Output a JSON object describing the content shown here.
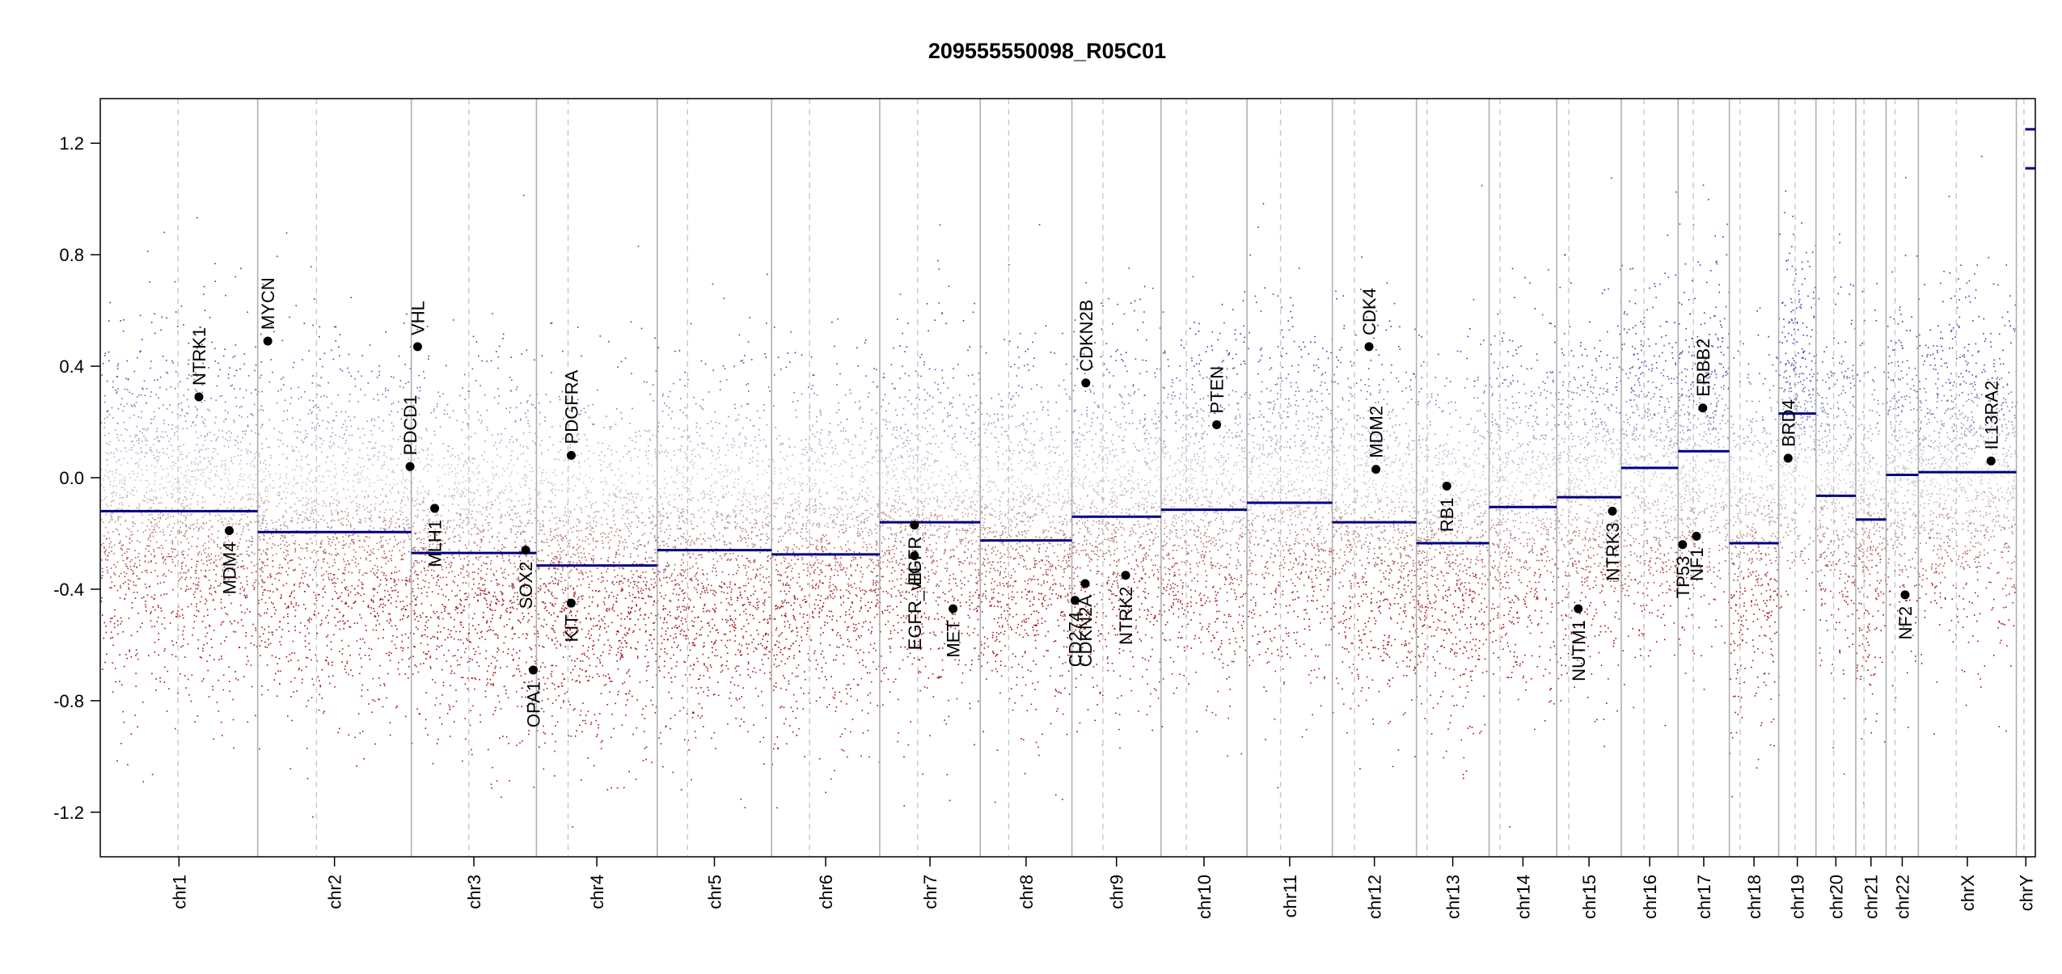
{
  "chart_data": {
    "type": "scatter",
    "title": "209555550098_R05C01",
    "xlabel": "",
    "ylabel": "",
    "ylim": [
      -1.36,
      1.36
    ],
    "y_ticks": [
      -1.2,
      -0.8,
      -0.4,
      0.0,
      0.4,
      0.8,
      1.2
    ],
    "y_tick_labels": [
      "-1.2",
      "-0.8",
      "-0.4",
      "0.0",
      "0.4",
      "0.8",
      "1.2"
    ],
    "grid": false,
    "legend": "none",
    "colors": {
      "gain": "#3a3aa8",
      "neutral": "#bbbbbb",
      "loss": "#a01010",
      "segment": "#000080",
      "boundary": "#b0b0b0",
      "centromere": "#c8c8c8",
      "gene_point": "#000000"
    },
    "chromosomes": [
      {
        "name": "chr1",
        "size": 249,
        "centromere": 123
      },
      {
        "name": "chr2",
        "size": 243,
        "centromere": 93
      },
      {
        "name": "chr3",
        "size": 198,
        "centromere": 91
      },
      {
        "name": "chr4",
        "size": 191,
        "centromere": 50
      },
      {
        "name": "chr5",
        "size": 181,
        "centromere": 48
      },
      {
        "name": "chr6",
        "size": 171,
        "centromere": 60
      },
      {
        "name": "chr7",
        "size": 159,
        "centromere": 60
      },
      {
        "name": "chr8",
        "size": 145,
        "centromere": 45
      },
      {
        "name": "chr9",
        "size": 141,
        "centromere": 49
      },
      {
        "name": "chr10",
        "size": 136,
        "centromere": 40
      },
      {
        "name": "chr11",
        "size": 135,
        "centromere": 53
      },
      {
        "name": "chr12",
        "size": 133,
        "centromere": 35
      },
      {
        "name": "chr13",
        "size": 115,
        "centromere": 17
      },
      {
        "name": "chr14",
        "size": 107,
        "centromere": 17
      },
      {
        "name": "chr15",
        "size": 102,
        "centromere": 19
      },
      {
        "name": "chr16",
        "size": 90,
        "centromere": 36
      },
      {
        "name": "chr17",
        "size": 81,
        "centromere": 24
      },
      {
        "name": "chr18",
        "size": 78,
        "centromere": 17
      },
      {
        "name": "chr19",
        "size": 59,
        "centromere": 26
      },
      {
        "name": "chr20",
        "size": 63,
        "centromere": 28
      },
      {
        "name": "chr21",
        "size": 48,
        "centromere": 13
      },
      {
        "name": "chr22",
        "size": 51,
        "centromere": 14
      },
      {
        "name": "chrX",
        "size": 155,
        "centromere": 60
      },
      {
        "name": "chrY",
        "size": 30,
        "centromere": 12
      }
    ],
    "segments": [
      {
        "chr": "chr1",
        "start": 0,
        "end": 249,
        "value": -0.12
      },
      {
        "chr": "chr2",
        "start": 0,
        "end": 243,
        "value": -0.195
      },
      {
        "chr": "chr3",
        "start": 0,
        "end": 198,
        "value": -0.27
      },
      {
        "chr": "chr4",
        "start": 0,
        "end": 191,
        "value": -0.315
      },
      {
        "chr": "chr5",
        "start": 0,
        "end": 181,
        "value": -0.26
      },
      {
        "chr": "chr6",
        "start": 0,
        "end": 171,
        "value": -0.275
      },
      {
        "chr": "chr7",
        "start": 0,
        "end": 159,
        "value": -0.16
      },
      {
        "chr": "chr8",
        "start": 0,
        "end": 145,
        "value": -0.225
      },
      {
        "chr": "chr9",
        "start": 0,
        "end": 141,
        "value": -0.14
      },
      {
        "chr": "chr10",
        "start": 0,
        "end": 136,
        "value": -0.115
      },
      {
        "chr": "chr11",
        "start": 0,
        "end": 135,
        "value": -0.09
      },
      {
        "chr": "chr12",
        "start": 0,
        "end": 133,
        "value": -0.16
      },
      {
        "chr": "chr13",
        "start": 0,
        "end": 115,
        "value": -0.235
      },
      {
        "chr": "chr14",
        "start": 0,
        "end": 107,
        "value": -0.105
      },
      {
        "chr": "chr15",
        "start": 0,
        "end": 102,
        "value": -0.07
      },
      {
        "chr": "chr16",
        "start": 0,
        "end": 90,
        "value": 0.035
      },
      {
        "chr": "chr17",
        "start": 0,
        "end": 81,
        "value": 0.095
      },
      {
        "chr": "chr18",
        "start": 0,
        "end": 78,
        "value": -0.235
      },
      {
        "chr": "chr19",
        "start": 0,
        "end": 59,
        "value": 0.23
      },
      {
        "chr": "chr20",
        "start": 0,
        "end": 63,
        "value": -0.065
      },
      {
        "chr": "chr21",
        "start": 0,
        "end": 48,
        "value": -0.15
      },
      {
        "chr": "chr22",
        "start": 0,
        "end": 51,
        "value": 0.01
      },
      {
        "chr": "chrX",
        "start": 0,
        "end": 155,
        "value": 0.02
      },
      {
        "chr": "chrY",
        "start": 14,
        "end": 30,
        "value": 1.25
      },
      {
        "chr": "chrY",
        "start": 14,
        "end": 30,
        "value": 1.11
      }
    ],
    "genes": [
      {
        "name": "NTRK1",
        "chr": "chr1",
        "pos": 156,
        "value": 0.29,
        "label_side": "above"
      },
      {
        "name": "MDM4",
        "chr": "chr1",
        "pos": 204,
        "value": -0.19,
        "label_side": "below"
      },
      {
        "name": "MYCN",
        "chr": "chr2",
        "pos": 16,
        "value": 0.49,
        "label_side": "above"
      },
      {
        "name": "PDCD1",
        "chr": "chr2",
        "pos": 241,
        "value": 0.04,
        "label_side": "above"
      },
      {
        "name": "VHL",
        "chr": "chr3",
        "pos": 10,
        "value": 0.47,
        "label_side": "above"
      },
      {
        "name": "MLH1",
        "chr": "chr3",
        "pos": 37,
        "value": -0.11,
        "label_side": "below"
      },
      {
        "name": "SOX2",
        "chr": "chr3",
        "pos": 181,
        "value": -0.26,
        "label_side": "below"
      },
      {
        "name": "OPA1",
        "chr": "chr3",
        "pos": 193,
        "value": -0.69,
        "label_side": "below"
      },
      {
        "name": "PDGFRA",
        "chr": "chr4",
        "pos": 55,
        "value": 0.08,
        "label_side": "above"
      },
      {
        "name": "KIT",
        "chr": "chr4",
        "pos": 55,
        "value": -0.45,
        "label_side": "below"
      },
      {
        "name": "EGFR",
        "chr": "chr7",
        "pos": 55,
        "value": -0.17,
        "label_side": "below"
      },
      {
        "name": "EGFR_vIII",
        "chr": "chr7",
        "pos": 55,
        "value": -0.28,
        "label_side": "below"
      },
      {
        "name": "MET",
        "chr": "chr7",
        "pos": 116,
        "value": -0.47,
        "label_side": "below"
      },
      {
        "name": "CDKN2B",
        "chr": "chr9",
        "pos": 22,
        "value": 0.34,
        "label_side": "above"
      },
      {
        "name": "CD274",
        "chr": "chr9",
        "pos": 5,
        "value": -0.44,
        "label_side": "below"
      },
      {
        "name": "CDKN2A",
        "chr": "chr9",
        "pos": 21,
        "value": -0.38,
        "label_side": "below"
      },
      {
        "name": "NTRK2",
        "chr": "chr9",
        "pos": 85,
        "value": -0.35,
        "label_side": "below"
      },
      {
        "name": "PTEN",
        "chr": "chr10",
        "pos": 88,
        "value": 0.19,
        "label_side": "above"
      },
      {
        "name": "CDK4",
        "chr": "chr12",
        "pos": 58,
        "value": 0.47,
        "label_side": "above"
      },
      {
        "name": "MDM2",
        "chr": "chr12",
        "pos": 69,
        "value": 0.03,
        "label_side": "above"
      },
      {
        "name": "RB1",
        "chr": "chr13",
        "pos": 48,
        "value": -0.03,
        "label_side": "below"
      },
      {
        "name": "NUTM1",
        "chr": "chr15",
        "pos": 34,
        "value": -0.47,
        "label_side": "below"
      },
      {
        "name": "NTRK3",
        "chr": "chr15",
        "pos": 88,
        "value": -0.12,
        "label_side": "below"
      },
      {
        "name": "TP53",
        "chr": "chr17",
        "pos": 7,
        "value": -0.24,
        "label_side": "below"
      },
      {
        "name": "NF1",
        "chr": "chr17",
        "pos": 29,
        "value": -0.21,
        "label_side": "below"
      },
      {
        "name": "ERBB2",
        "chr": "chr17",
        "pos": 39,
        "value": 0.25,
        "label_side": "above"
      },
      {
        "name": "BRD4",
        "chr": "chr19",
        "pos": 15,
        "value": 0.07,
        "label_side": "above"
      },
      {
        "name": "NF2",
        "chr": "chr22",
        "pos": 30,
        "value": -0.42,
        "label_side": "below"
      },
      {
        "name": "IL13RA2",
        "chr": "chrX",
        "pos": 115,
        "value": 0.06,
        "label_side": "above"
      }
    ]
  }
}
